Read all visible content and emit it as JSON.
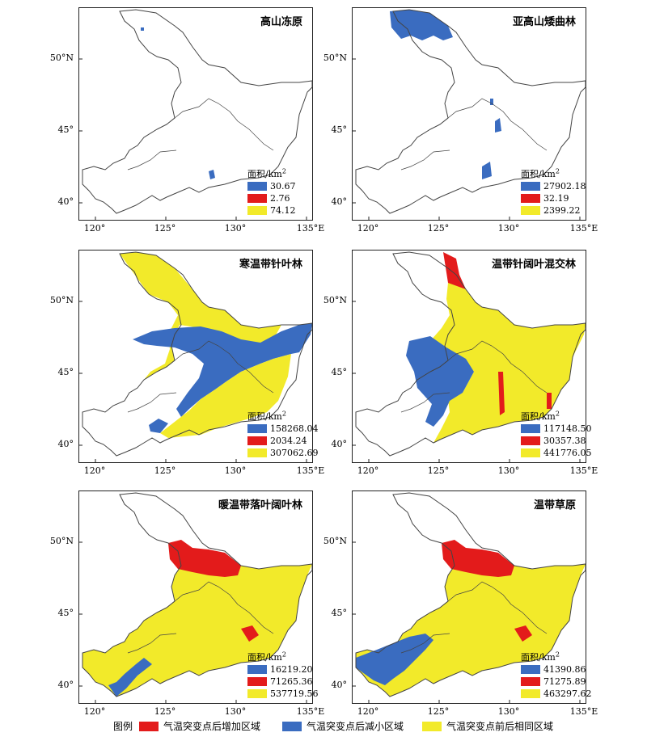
{
  "colors": {
    "decrease": "#3a6cc0",
    "increase": "#e31b1b",
    "same": "#f2ea2a",
    "outline": "#444444"
  },
  "axis": {
    "x_ticks": [
      "120°",
      "125°",
      "130°",
      "135°E"
    ],
    "y_ticks": [
      "50°N",
      "45°",
      "40°"
    ]
  },
  "legend_title": "面积/km",
  "legend_title_sup": "2",
  "panels": [
    {
      "title": "高山冻原",
      "values": [
        "30.67",
        "2.76",
        "74.12"
      ]
    },
    {
      "title": "亚高山矮曲林",
      "values": [
        "27902.18",
        "32.19",
        "2399.22"
      ]
    },
    {
      "title": "寒温带针叶林",
      "values": [
        "158268.04",
        "2034.24",
        "307062.69"
      ]
    },
    {
      "title": "温带针阔叶混交林",
      "values": [
        "117148.50",
        "30357.38",
        "441776.05"
      ]
    },
    {
      "title": "暖温带落叶阔叶林",
      "values": [
        "16219.20",
        "71265.36",
        "537719.56"
      ]
    },
    {
      "title": "温带草原",
      "values": [
        "41390.86",
        "71275.89",
        "463297.62"
      ]
    }
  ],
  "bottom_legend": {
    "label": "图例",
    "increase": "气温突变点后增加区域",
    "decrease": "气温突变点后减小区域",
    "same": "气温突变点前后相同区域"
  }
}
